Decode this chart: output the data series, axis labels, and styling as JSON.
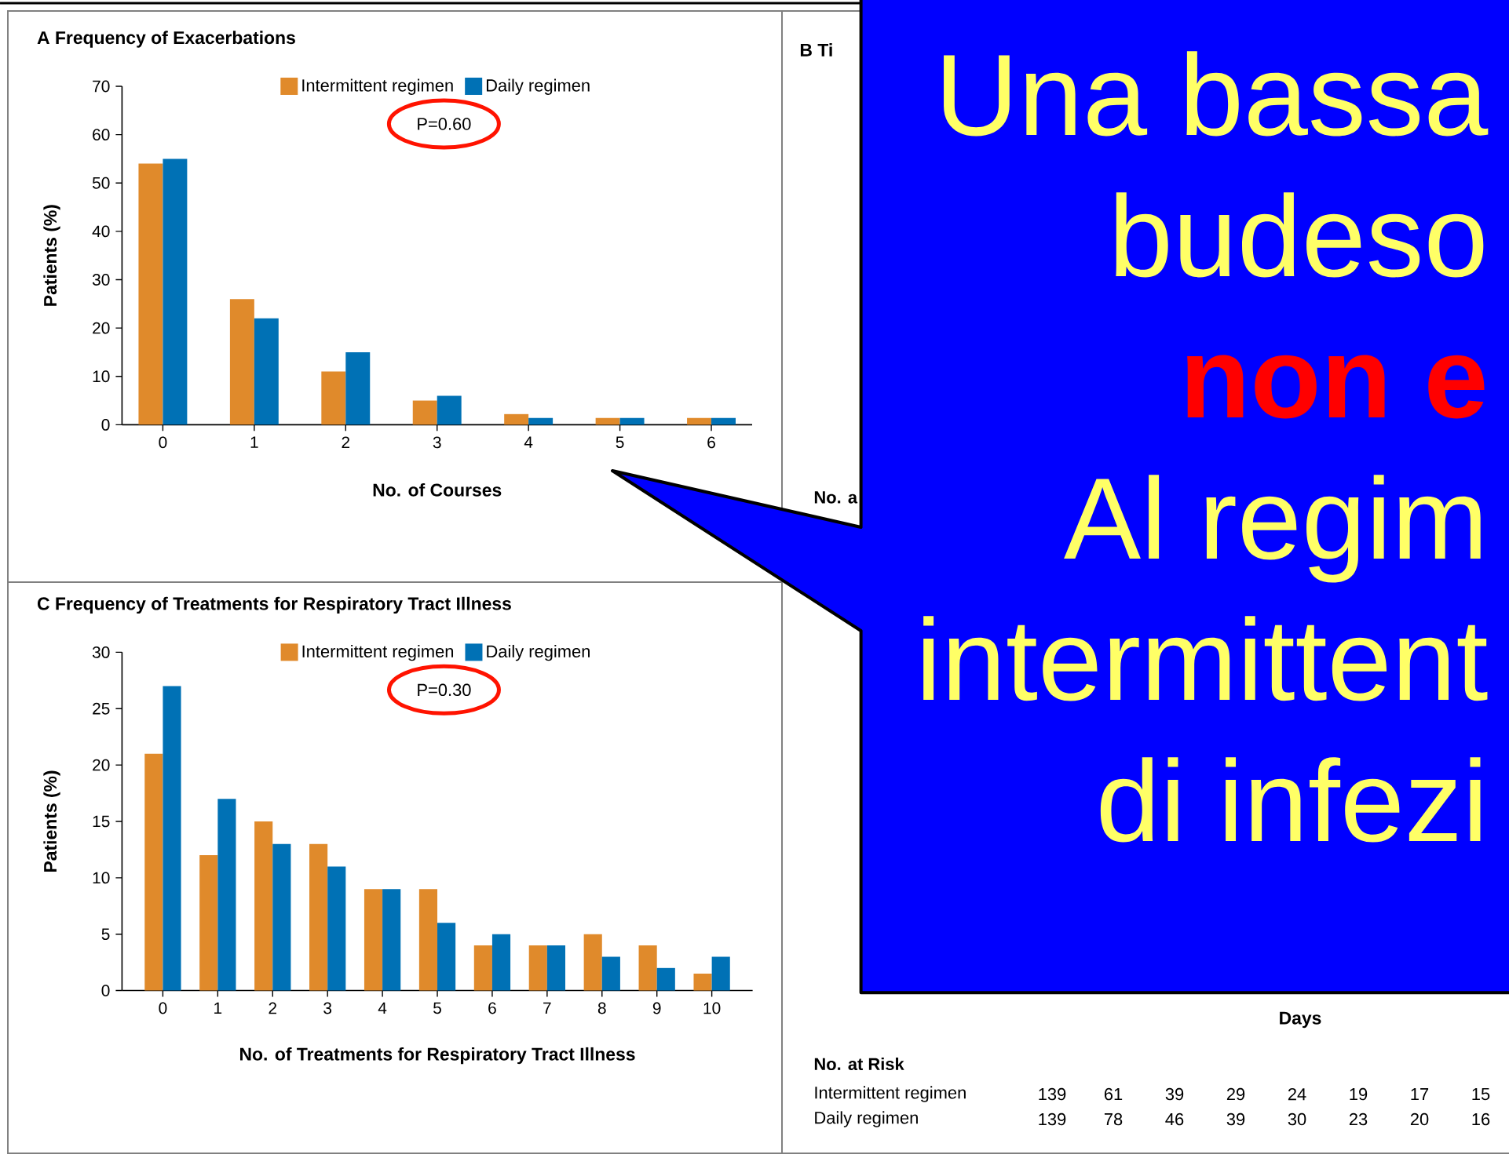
{
  "chart_data": [
    {
      "type": "bar",
      "title": "A Frequency of Exacerbations",
      "categories": [
        "0",
        "1",
        "2",
        "3",
        "4",
        "5",
        "6"
      ],
      "series": [
        {
          "name": "Intermittent regimen",
          "color": "#e08a2b",
          "values": [
            54,
            26,
            11,
            5,
            2.2,
            1.4,
            1.4
          ]
        },
        {
          "name": "Daily regimen",
          "color": "#0071b5",
          "values": [
            55,
            22,
            15,
            6,
            1.4,
            1.4,
            1.4
          ]
        }
      ],
      "xlabel": "No. of Courses",
      "ylabel": "Patients (%)",
      "ylim": [
        0,
        70
      ],
      "yticks": [
        0,
        10,
        20,
        30,
        40,
        50,
        60,
        70
      ],
      "legend": "top",
      "annotations": [
        "P=0.60"
      ]
    },
    {
      "type": "other",
      "title": "B Ti",
      "xlabel": "Days",
      "y_categories": [
        "Intermittent regimen",
        "Daily regimen"
      ],
      "annotations": [
        "No. a",
        "No. at Risk",
        "139",
        "61",
        "39",
        "29",
        "24",
        "19",
        "17",
        "15",
        "139",
        "78",
        "46",
        "39",
        "30",
        "23",
        "20",
        "16"
      ]
    },
    {
      "type": "bar",
      "title": "C Frequency of Treatments for Respiratory Tract Illness",
      "categories": [
        "0",
        "1",
        "2",
        "3",
        "4",
        "5",
        "6",
        "7",
        "8",
        "9",
        "10"
      ],
      "series": [
        {
          "name": "Intermittent regimen",
          "color": "#e08a2b",
          "values": [
            21,
            12,
            15,
            13,
            9,
            9,
            4,
            4,
            5,
            4,
            1.5
          ]
        },
        {
          "name": "Daily regimen",
          "color": "#0071b5",
          "values": [
            27,
            17,
            13,
            11,
            9,
            6,
            5,
            4,
            3,
            2,
            3
          ]
        }
      ],
      "xlabel": "No. of Treatments for Respiratory Tract Illness",
      "ylabel": "Patients (%)",
      "ylim": [
        0,
        30
      ],
      "yticks": [
        0,
        5,
        10,
        15,
        20,
        25,
        30
      ],
      "legend": "top",
      "annotations": [
        "P=0.30"
      ]
    },
    {
      "type": "other",
      "color": "#0000ff",
      "annotations": [
        "Una bassa",
        "budeso",
        "**non e**",
        "Al regim",
        "intermittent",
        "di infezi"
      ],
      "colors": [
        "#ffff66",
        "#ffff66",
        "#ff0000",
        "#ffff66",
        "#ffff66",
        "#ffff66"
      ]
    }
  ]
}
